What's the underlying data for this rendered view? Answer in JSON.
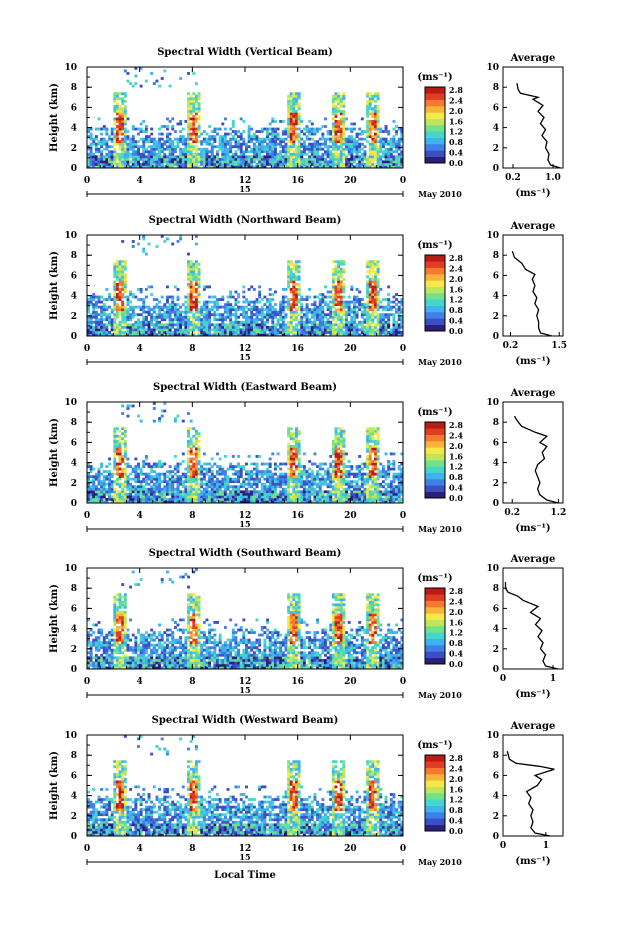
{
  "chart_data": [
    {
      "type": "heatmap",
      "title": "Spectral Width (Vertical Beam)",
      "ylabel": "Height (km)",
      "yticks": [
        "0",
        "2",
        "4",
        "6",
        "8",
        "10"
      ],
      "xticks": [
        "0",
        "4",
        "8",
        "12",
        "16",
        "20",
        "0"
      ],
      "day_label": "15",
      "date_label": "May 2010",
      "colorbar": {
        "unit": "(ms⁻¹)",
        "ticks": [
          "2.8",
          "2.4",
          "2.0",
          "1.6",
          "1.2",
          "0.8",
          "0.4",
          "0.0"
        ]
      },
      "profile": {
        "title": "Average",
        "xlabel": "(ms⁻¹)",
        "xticks": [
          "0.2",
          "1.0"
        ],
        "yticks": [
          "0",
          "2",
          "4",
          "6",
          "8",
          "10"
        ],
        "xlim": [
          0.0,
          1.2
        ],
        "points": [
          [
            1.15,
            0.0
          ],
          [
            0.95,
            0.3
          ],
          [
            0.9,
            0.8
          ],
          [
            0.92,
            1.4
          ],
          [
            0.85,
            2.0
          ],
          [
            0.88,
            2.6
          ],
          [
            0.78,
            3.2
          ],
          [
            0.85,
            3.8
          ],
          [
            0.75,
            4.4
          ],
          [
            0.82,
            5.0
          ],
          [
            0.7,
            5.6
          ],
          [
            0.8,
            6.2
          ],
          [
            0.6,
            6.8
          ],
          [
            0.7,
            7.0
          ],
          [
            0.35,
            7.4
          ],
          [
            0.3,
            7.8
          ],
          [
            0.28,
            8.4
          ]
        ]
      }
    },
    {
      "type": "heatmap",
      "title": "Spectral Width (Northward Beam)",
      "ylabel": "Height (km)",
      "yticks": [
        "0",
        "2",
        "4",
        "6",
        "8",
        "10"
      ],
      "xticks": [
        "0",
        "4",
        "8",
        "12",
        "16",
        "20",
        "0"
      ],
      "day_label": "15",
      "date_label": "May 2010",
      "colorbar": {
        "unit": "(ms⁻¹)",
        "ticks": [
          "2.8",
          "2.4",
          "2.0",
          "1.6",
          "1.2",
          "0.8",
          "0.4",
          "0.0"
        ]
      },
      "profile": {
        "title": "Average",
        "xlabel": "(ms⁻¹)",
        "xticks": [
          "0.2",
          "1.5"
        ],
        "yticks": [
          "0",
          "2",
          "4",
          "6",
          "8",
          "10"
        ],
        "xlim": [
          0.0,
          1.6
        ],
        "points": [
          [
            1.3,
            0.0
          ],
          [
            1.0,
            0.3
          ],
          [
            0.95,
            0.8
          ],
          [
            0.95,
            1.4
          ],
          [
            0.9,
            2.0
          ],
          [
            0.95,
            2.6
          ],
          [
            0.85,
            3.2
          ],
          [
            0.9,
            3.8
          ],
          [
            0.8,
            4.4
          ],
          [
            0.85,
            5.0
          ],
          [
            0.78,
            5.6
          ],
          [
            0.85,
            6.1
          ],
          [
            0.6,
            6.6
          ],
          [
            0.5,
            7.2
          ],
          [
            0.3,
            7.8
          ],
          [
            0.25,
            8.4
          ]
        ]
      }
    },
    {
      "type": "heatmap",
      "title": "Spectral Width (Eastward Beam)",
      "ylabel": "Height (km)",
      "yticks": [
        "0",
        "2",
        "4",
        "6",
        "8",
        "10"
      ],
      "xticks": [
        "0",
        "4",
        "8",
        "12",
        "16",
        "20",
        "0"
      ],
      "day_label": "15",
      "date_label": "May 2010",
      "colorbar": {
        "unit": "(ms⁻¹)",
        "ticks": [
          "2.8",
          "2.4",
          "2.0",
          "1.6",
          "1.2",
          "0.8",
          "0.4",
          "0.0"
        ]
      },
      "profile": {
        "title": "Average",
        "xlabel": "(ms⁻¹)",
        "xticks": [
          "0.2",
          "1.2"
        ],
        "yticks": [
          "0",
          "2",
          "4",
          "6",
          "8",
          "10"
        ],
        "xlim": [
          0.0,
          1.3
        ],
        "points": [
          [
            1.2,
            0.0
          ],
          [
            0.95,
            0.3
          ],
          [
            0.8,
            0.8
          ],
          [
            0.75,
            1.4
          ],
          [
            0.8,
            2.0
          ],
          [
            0.75,
            2.6
          ],
          [
            0.7,
            3.2
          ],
          [
            0.75,
            3.8
          ],
          [
            0.9,
            4.4
          ],
          [
            0.85,
            5.0
          ],
          [
            0.95,
            5.6
          ],
          [
            0.8,
            6.0
          ],
          [
            0.95,
            6.6
          ],
          [
            0.7,
            7.0
          ],
          [
            0.4,
            7.6
          ],
          [
            0.3,
            8.2
          ],
          [
            0.25,
            8.6
          ]
        ]
      }
    },
    {
      "type": "heatmap",
      "title": "Spectral Width (Southward Beam)",
      "ylabel": "Height (km)",
      "yticks": [
        "0",
        "2",
        "4",
        "6",
        "8",
        "10"
      ],
      "xticks": [
        "0",
        "4",
        "8",
        "12",
        "16",
        "20",
        "0"
      ],
      "day_label": "15",
      "date_label": "May 2010",
      "colorbar": {
        "unit": "(ms⁻¹)",
        "ticks": [
          "2.8",
          "2.4",
          "2.0",
          "1.6",
          "1.2",
          "0.8",
          "0.4",
          "0.0"
        ]
      },
      "profile": {
        "title": "Average",
        "xlabel": "(ms⁻¹)",
        "xticks": [
          "0",
          "1"
        ],
        "yticks": [
          "0",
          "2",
          "4",
          "6",
          "8",
          "10"
        ],
        "xlim": [
          0.0,
          1.2
        ],
        "points": [
          [
            1.1,
            0.0
          ],
          [
            0.85,
            0.3
          ],
          [
            0.8,
            0.8
          ],
          [
            0.85,
            1.4
          ],
          [
            0.75,
            2.0
          ],
          [
            0.8,
            2.6
          ],
          [
            0.7,
            3.2
          ],
          [
            0.78,
            3.8
          ],
          [
            0.65,
            4.4
          ],
          [
            0.75,
            5.0
          ],
          [
            0.55,
            5.6
          ],
          [
            0.7,
            6.2
          ],
          [
            0.4,
            6.8
          ],
          [
            0.3,
            7.2
          ],
          [
            0.1,
            7.6
          ],
          [
            0.05,
            8.0
          ],
          [
            0.05,
            8.6
          ]
        ]
      }
    },
    {
      "type": "heatmap",
      "title": "Spectral Width (Westward Beam)",
      "ylabel": "Height (km)",
      "yticks": [
        "0",
        "2",
        "4",
        "6",
        "8",
        "10"
      ],
      "xticks": [
        "0",
        "4",
        "8",
        "12",
        "16",
        "20",
        "0"
      ],
      "day_label": "15",
      "date_label": "May 2010",
      "colorbar": {
        "unit": "(ms⁻¹)",
        "ticks": [
          "2.8",
          "2.4",
          "2.0",
          "1.6",
          "1.2",
          "0.8",
          "0.4",
          "0.0"
        ]
      },
      "profile": {
        "title": "Average",
        "xlabel": "(ms⁻¹)",
        "xticks": [
          "0",
          "1"
        ],
        "yticks": [
          "0",
          "2",
          "4",
          "6",
          "8",
          "10"
        ],
        "xlim": [
          0.0,
          1.4
        ],
        "points": [
          [
            1.1,
            0.0
          ],
          [
            0.75,
            0.3
          ],
          [
            0.65,
            0.8
          ],
          [
            0.7,
            1.4
          ],
          [
            0.65,
            2.0
          ],
          [
            0.7,
            2.6
          ],
          [
            0.6,
            3.2
          ],
          [
            0.65,
            3.8
          ],
          [
            0.55,
            4.4
          ],
          [
            0.8,
            5.0
          ],
          [
            0.9,
            5.6
          ],
          [
            0.75,
            6.0
          ],
          [
            1.2,
            6.6
          ],
          [
            0.85,
            6.9
          ],
          [
            0.3,
            7.2
          ],
          [
            0.15,
            7.6
          ],
          [
            0.1,
            8.4
          ]
        ]
      }
    }
  ],
  "footer": {
    "xlabel": "Local Time"
  },
  "colormap": [
    "#2b1f7a",
    "#3a4fc2",
    "#3f7fe6",
    "#3fb3f0",
    "#45d6c8",
    "#72e08c",
    "#bfe65a",
    "#f5e84a",
    "#f8b43a",
    "#f37a2e",
    "#e03d22",
    "#b81c16"
  ]
}
